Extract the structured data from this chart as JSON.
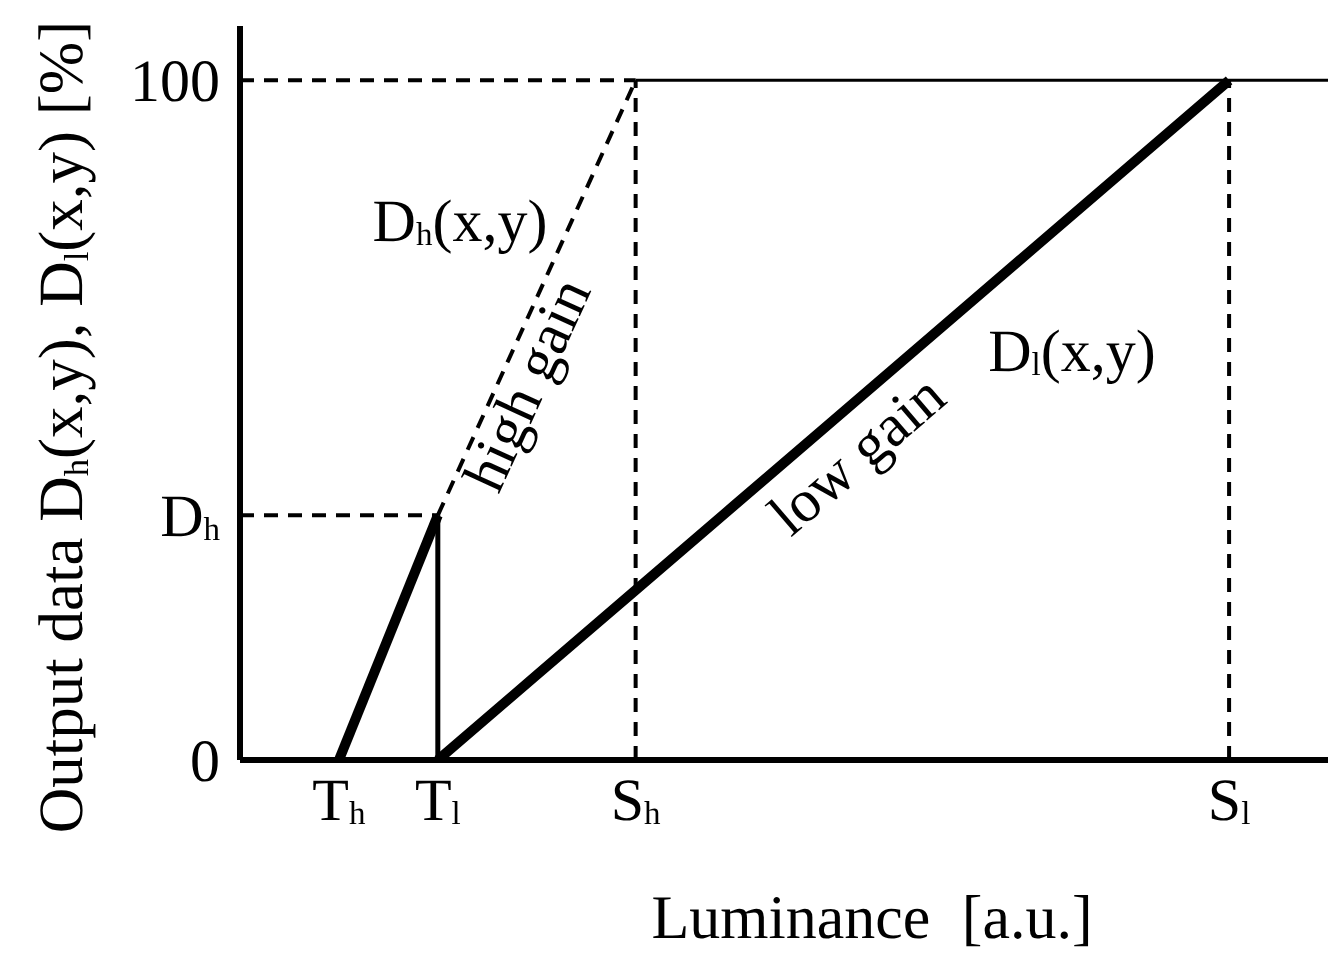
{
  "chart_data": {
    "type": "line",
    "xlabel": "Luminance [a.u.]",
    "ylabel": "Output data D$_{h}$(x,y), D$_{l}$(x,y) [%]",
    "categories": [
      null,
      "T$_{h}$",
      "T$_{l}$",
      null,
      "S$_{h}$",
      null,
      null,
      null,
      null,
      null,
      "S$_{l}$",
      null
    ],
    "ylim": [
      0,
      108
    ],
    "yticks": [
      0,
      {
        "value": 36,
        "label": "D$_{h}$"
      },
      100
    ],
    "series": [
      {
        "color": "#000000",
        "values": [
          null,
          0,
          36,
          null,
          null,
          null,
          null,
          null,
          null,
          null,
          null,
          null
        ]
      },
      {
        "color": "#000000",
        "values": [
          null,
          null,
          36,
          68,
          100,
          null,
          null,
          null,
          null,
          null,
          null,
          null
        ],
        "line_style": "dashed"
      },
      {
        "color": "#000000",
        "values": [
          null,
          null,
          0,
          12.5,
          25,
          37.5,
          50,
          62.5,
          75,
          87.5,
          100,
          null
        ]
      },
      {
        "color": "#000000",
        "values": [
          null,
          null,
          null,
          null,
          100,
          100,
          100,
          100,
          100,
          100,
          100,
          100
        ]
      }
    ],
    "ref_lines": [
      {
        "axis": "y",
        "value": 100,
        "color": "#000000",
        "line_style": "dashed"
      },
      {
        "axis": "y",
        "value": 36,
        "color": "#000000",
        "line_style": "dashed"
      },
      {
        "axis": "x",
        "value": "S$_{h}$",
        "color": "#000000",
        "line_style": "dashed"
      },
      {
        "axis": "x",
        "value": "S$_{l}$",
        "color": "#000000",
        "line_style": "dashed"
      },
      {
        "axis": "x",
        "value": "T$_{l}$",
        "color": "#000000",
        "line_style": "solid"
      }
    ],
    "annotations": [
      "D$_{h}$(x,y)",
      "high gain",
      "low gain",
      "D$_{l}$(x,y)"
    ],
    "grid": false,
    "marker": "none",
    "line_style": "solid"
  }
}
